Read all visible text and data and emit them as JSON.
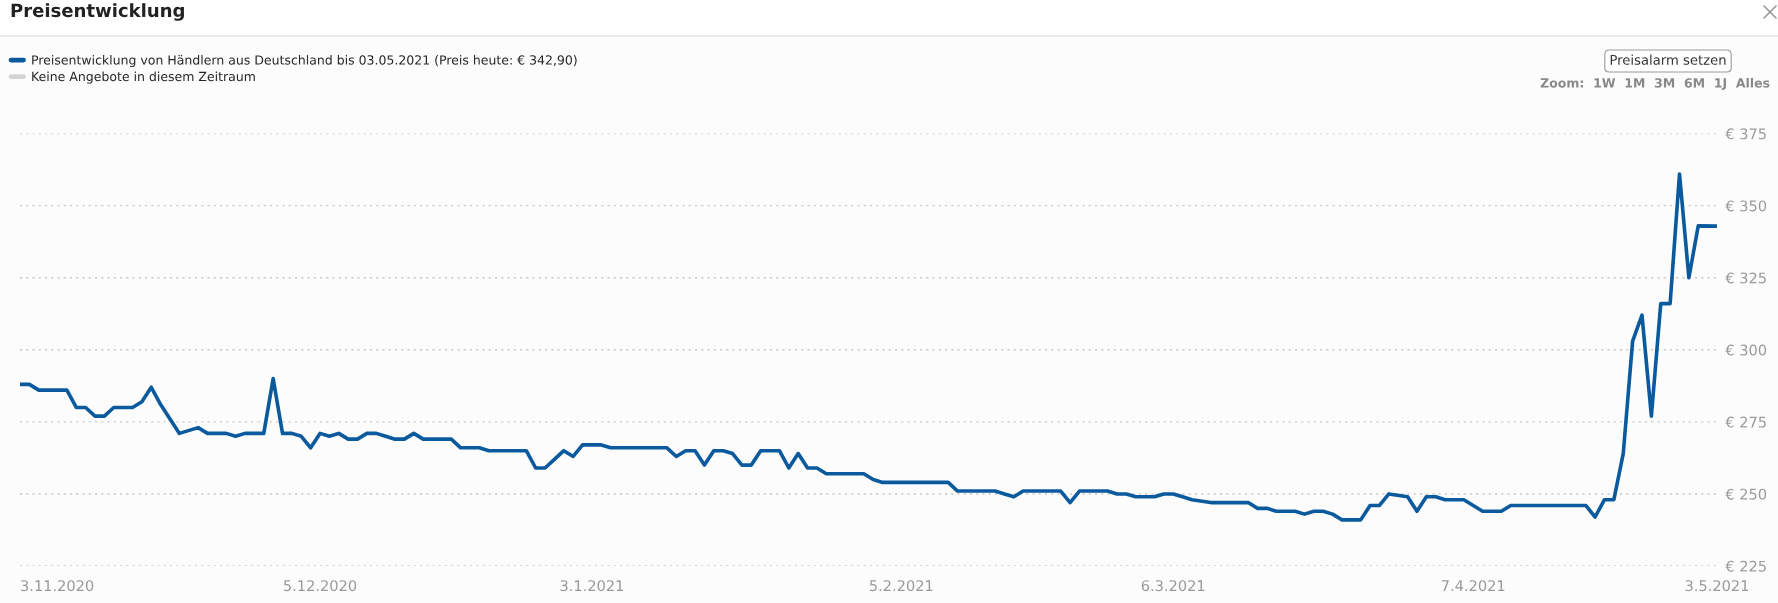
{
  "chart_data": {
    "type": "line",
    "title": "Preisentwicklung",
    "x": [
      "2020-11-03",
      "2020-11-04",
      "2020-11-05",
      "2020-11-08",
      "2020-11-09",
      "2020-11-10",
      "2020-11-11",
      "2020-11-12",
      "2020-11-13",
      "2020-11-15",
      "2020-11-16",
      "2020-11-17",
      "2020-11-18",
      "2020-11-19",
      "2020-11-20",
      "2020-11-22",
      "2020-11-23",
      "2020-11-25",
      "2020-11-26",
      "2020-11-27",
      "2020-11-29",
      "2020-11-30",
      "2020-12-01",
      "2020-12-02",
      "2020-12-03",
      "2020-12-04",
      "2020-12-05",
      "2020-12-06",
      "2020-12-07",
      "2020-12-08",
      "2020-12-09",
      "2020-12-10",
      "2020-12-11",
      "2020-12-12",
      "2020-12-13",
      "2020-12-14",
      "2020-12-15",
      "2020-12-16",
      "2020-12-19",
      "2020-12-20",
      "2020-12-22",
      "2020-12-23",
      "2020-12-27",
      "2020-12-28",
      "2020-12-29",
      "2020-12-30",
      "2020-12-31",
      "2021-01-01",
      "2021-01-02",
      "2021-01-04",
      "2021-01-05",
      "2021-01-11",
      "2021-01-12",
      "2021-01-13",
      "2021-01-14",
      "2021-01-15",
      "2021-01-16",
      "2021-01-17",
      "2021-01-18",
      "2021-01-19",
      "2021-01-20",
      "2021-01-21",
      "2021-01-23",
      "2021-01-24",
      "2021-01-25",
      "2021-01-26",
      "2021-01-27",
      "2021-01-28",
      "2021-01-30",
      "2021-01-31",
      "2021-02-01",
      "2021-02-02",
      "2021-02-03",
      "2021-02-10",
      "2021-02-11",
      "2021-02-15",
      "2021-02-16",
      "2021-02-17",
      "2021-02-18",
      "2021-02-22",
      "2021-02-23",
      "2021-02-24",
      "2021-02-27",
      "2021-02-28",
      "2021-03-01",
      "2021-03-02",
      "2021-03-04",
      "2021-03-05",
      "2021-03-06",
      "2021-03-07",
      "2021-03-08",
      "2021-03-10",
      "2021-03-11",
      "2021-03-14",
      "2021-03-15",
      "2021-03-16",
      "2021-03-17",
      "2021-03-19",
      "2021-03-20",
      "2021-03-21",
      "2021-03-22",
      "2021-03-23",
      "2021-03-24",
      "2021-03-25",
      "2021-03-26",
      "2021-03-27",
      "2021-03-28",
      "2021-03-29",
      "2021-03-31",
      "2021-04-01",
      "2021-04-02",
      "2021-04-03",
      "2021-04-04",
      "2021-04-06",
      "2021-04-07",
      "2021-04-08",
      "2021-04-10",
      "2021-04-11",
      "2021-04-12",
      "2021-04-13",
      "2021-04-14",
      "2021-04-19",
      "2021-04-20",
      "2021-04-21",
      "2021-04-22",
      "2021-04-23",
      "2021-04-24",
      "2021-04-25",
      "2021-04-26",
      "2021-04-27",
      "2021-04-28",
      "2021-04-29",
      "2021-04-30",
      "2021-05-01",
      "2021-05-03"
    ],
    "series": [
      {
        "name": "Preisentwicklung von Händlern aus Deutschland bis 03.05.2021 (Preis heute: € 342,90)",
        "color": "#0b5a9e",
        "values": [
          288,
          288,
          286,
          286,
          280,
          280,
          277,
          277,
          280,
          280,
          282,
          287,
          281,
          276,
          271,
          273,
          271,
          271,
          270,
          271,
          271,
          290,
          271,
          271,
          270,
          266,
          271,
          270,
          271,
          269,
          269,
          271,
          271,
          270,
          269,
          269,
          271,
          269,
          269,
          266,
          266,
          265,
          265,
          259,
          259,
          262,
          265,
          263,
          267,
          267,
          266,
          266,
          263,
          265,
          265,
          260,
          265,
          265,
          264,
          260,
          260,
          265,
          265,
          259,
          264,
          259,
          259,
          257,
          257,
          257,
          257,
          255,
          254,
          254,
          251,
          251,
          250,
          249,
          251,
          251,
          247,
          251,
          251,
          250,
          250,
          249,
          249,
          250,
          250,
          249,
          248,
          247,
          247,
          247,
          245,
          245,
          244,
          244,
          243,
          244,
          244,
          243,
          241,
          241,
          241,
          246,
          246,
          250,
          249,
          244,
          249,
          249,
          248,
          248,
          246,
          244,
          244,
          246,
          246,
          246,
          246,
          246,
          242,
          248,
          248,
          264,
          303,
          312,
          277,
          316,
          316,
          361,
          325,
          343,
          342.9
        ]
      },
      {
        "name": "Keine Angebote in diesem Zeitraum",
        "color": "#d4d4d4",
        "values": [
          null,
          null,
          null,
          null,
          null,
          null,
          null,
          null,
          null,
          null,
          null,
          null,
          null,
          null,
          null,
          null,
          null,
          null,
          null,
          null,
          null,
          null,
          null,
          null,
          null,
          null,
          null,
          null,
          null,
          null,
          null,
          null,
          null,
          null,
          null,
          null,
          null,
          null,
          null,
          null,
          null,
          null,
          null,
          null,
          null,
          null,
          null,
          null,
          null,
          null,
          null,
          null,
          null,
          null,
          null,
          null,
          null,
          null,
          null,
          null,
          null,
          null,
          null,
          null,
          null,
          null,
          null,
          null,
          null,
          null,
          null,
          null,
          null,
          null,
          null,
          null,
          null,
          null,
          null,
          null,
          null,
          null,
          null,
          null,
          null,
          null,
          null,
          null,
          null,
          null,
          null,
          null,
          null,
          null,
          null,
          null,
          null,
          null,
          null,
          null,
          null,
          null,
          null,
          null,
          null,
          null,
          null,
          null,
          null,
          null,
          null,
          null,
          null,
          null,
          null,
          null,
          null,
          null,
          null,
          null,
          null,
          null,
          null,
          null,
          null,
          null,
          null,
          null,
          null,
          null,
          null,
          null,
          null,
          null,
          null
        ]
      }
    ],
    "xlim": [
      "2020-11-03",
      "2021-05-03"
    ],
    "xticks": [
      {
        "value": "2020-11-03",
        "label": "3.11.2020"
      },
      {
        "value": "2020-12-05",
        "label": "5.12.2020"
      },
      {
        "value": "2021-01-03",
        "label": "3.1.2021"
      },
      {
        "value": "2021-02-05",
        "label": "5.2.2021"
      },
      {
        "value": "2021-03-06",
        "label": "6.3.2021"
      },
      {
        "value": "2021-04-07",
        "label": "7.4.2021"
      },
      {
        "value": "2021-05-03",
        "label": "3.5.2021"
      }
    ],
    "ylim": [
      225,
      375
    ],
    "yticks": [
      {
        "value": 225,
        "label": "€ 225"
      },
      {
        "value": 250,
        "label": "€ 250"
      },
      {
        "value": 275,
        "label": "€ 275"
      },
      {
        "value": 300,
        "label": "€ 300"
      },
      {
        "value": 325,
        "label": "€ 325"
      },
      {
        "value": 350,
        "label": "€ 350"
      },
      {
        "value": 375,
        "label": "€ 375"
      }
    ],
    "grid": "y",
    "legend": "top left",
    "marker": "none",
    "line_style": "solid",
    "annotations": [
      "Preisalarm setzen",
      "Zoom:  1W  1M  3M  6M  1J  Alles"
    ]
  }
}
